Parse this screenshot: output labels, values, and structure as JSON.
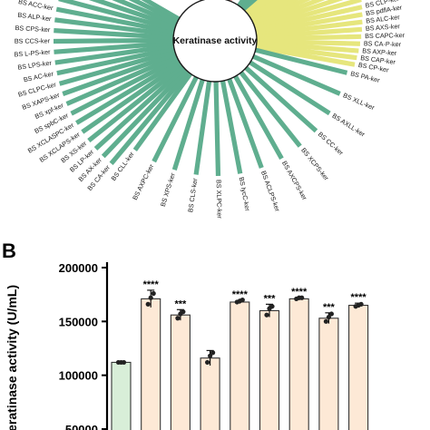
{
  "chart_data": [
    {
      "type": "bar",
      "layout": "radial",
      "title": "Keratinase activity",
      "colors": {
        "high": "#e6e67d",
        "rest": "#5fae8f",
        "pink": "#e9a6a6"
      },
      "right_labels": [
        "BS AXCSP-ker",
        "BS ALPSC-ker",
        "BS AXC-ker",
        "BS XCLA3C-ker",
        "BS ALS-ker",
        "BS XP-ker",
        "BS APC-ker",
        "BS XPC-ker",
        "BS AXLCP-ker",
        "BS XCP-ker",
        "BS XC-P-ker",
        "BS ACLCP-ker",
        "BS AXP-ker",
        "BS CLPC-ker",
        "BS cvilC-ker",
        "BS CLP-ker",
        "BS pdflA-ker",
        "BS ALC-ker",
        "BS AXS-ker",
        "BS CAPC-ker",
        "BS CA-P-ker",
        "BS AXP-ker",
        "BS CAP-ker",
        "BS CP-ker"
      ],
      "right_colors": [
        "green",
        "green",
        "green",
        "green",
        "green",
        "yellow",
        "yellow",
        "yellow",
        "yellow",
        "yellow",
        "yellow",
        "yellow",
        "yellow",
        "yellow",
        "yellow",
        "yellow",
        "yellow",
        "yellow",
        "yellow",
        "yellow",
        "yellow",
        "yellow",
        "yellow",
        "yellow"
      ],
      "bottom_labels": [
        "BS PA-ker",
        "BS XLL-ker",
        "BS AXLL-ker",
        "BS CC-ker",
        "BS XCPS-ker",
        "BS AXCPS-ker",
        "BS ACLPS-ker",
        "BS lycC-ker",
        "BS XLPC-ker",
        "BS CLS-ker",
        "BS XPS-ker",
        "BS AXPC-ker",
        "BS CLL-ker"
      ],
      "left_labels": [
        "BS CA-ker",
        "BS AX-ker",
        "BS LP-ker",
        "BS XS-ker",
        "BS XCLAPS-ker",
        "BS XCLASPC-ker",
        "BS spbC-ker",
        "BS xpf-ker",
        "BS XAPS-ker",
        "BS CLPC-ker",
        "BS AC-ker",
        "BS LPS-ker",
        "BS L-PS-ker",
        "BS CCS-ker",
        "BS CPS-ker",
        "BS ALP-ker",
        "BS ACC-ker",
        "BS CCP-ker",
        "BS XPS-ker",
        "BS AXCP-ker",
        "BS CLS-ker",
        "BS XCPS-ker"
      ]
    },
    {
      "type": "bar",
      "panel_label": "B",
      "ylabel": "Keratinase activity (U/mL)",
      "ylim": [
        50000,
        200000
      ],
      "yticks": [
        "200000",
        "150000",
        "100000",
        "50000"
      ],
      "values": [
        112000,
        171000,
        156000,
        116000,
        168000,
        160000,
        171000,
        153000,
        165000
      ],
      "points": [
        [
          112000,
          112000,
          112000
        ],
        [
          166000,
          172000,
          176000
        ],
        [
          153000,
          157000,
          159000
        ],
        [
          112000,
          118000,
          121000
        ],
        [
          168000,
          169000,
          170000
        ],
        [
          156000,
          162000,
          164000
        ],
        [
          171000,
          172000,
          172000
        ],
        [
          150000,
          154000,
          157000
        ],
        [
          164000,
          165000,
          166000
        ]
      ],
      "errors": [
        1000,
        8000,
        5000,
        7000,
        1500,
        6000,
        1000,
        5000,
        2000
      ],
      "significance": [
        "",
        "****",
        "***",
        "",
        "****",
        "***",
        "****",
        "***",
        "****"
      ],
      "colors": {
        "control": "#d8eed8",
        "treatment": "#fde9d6",
        "edge": "#333333"
      }
    }
  ]
}
